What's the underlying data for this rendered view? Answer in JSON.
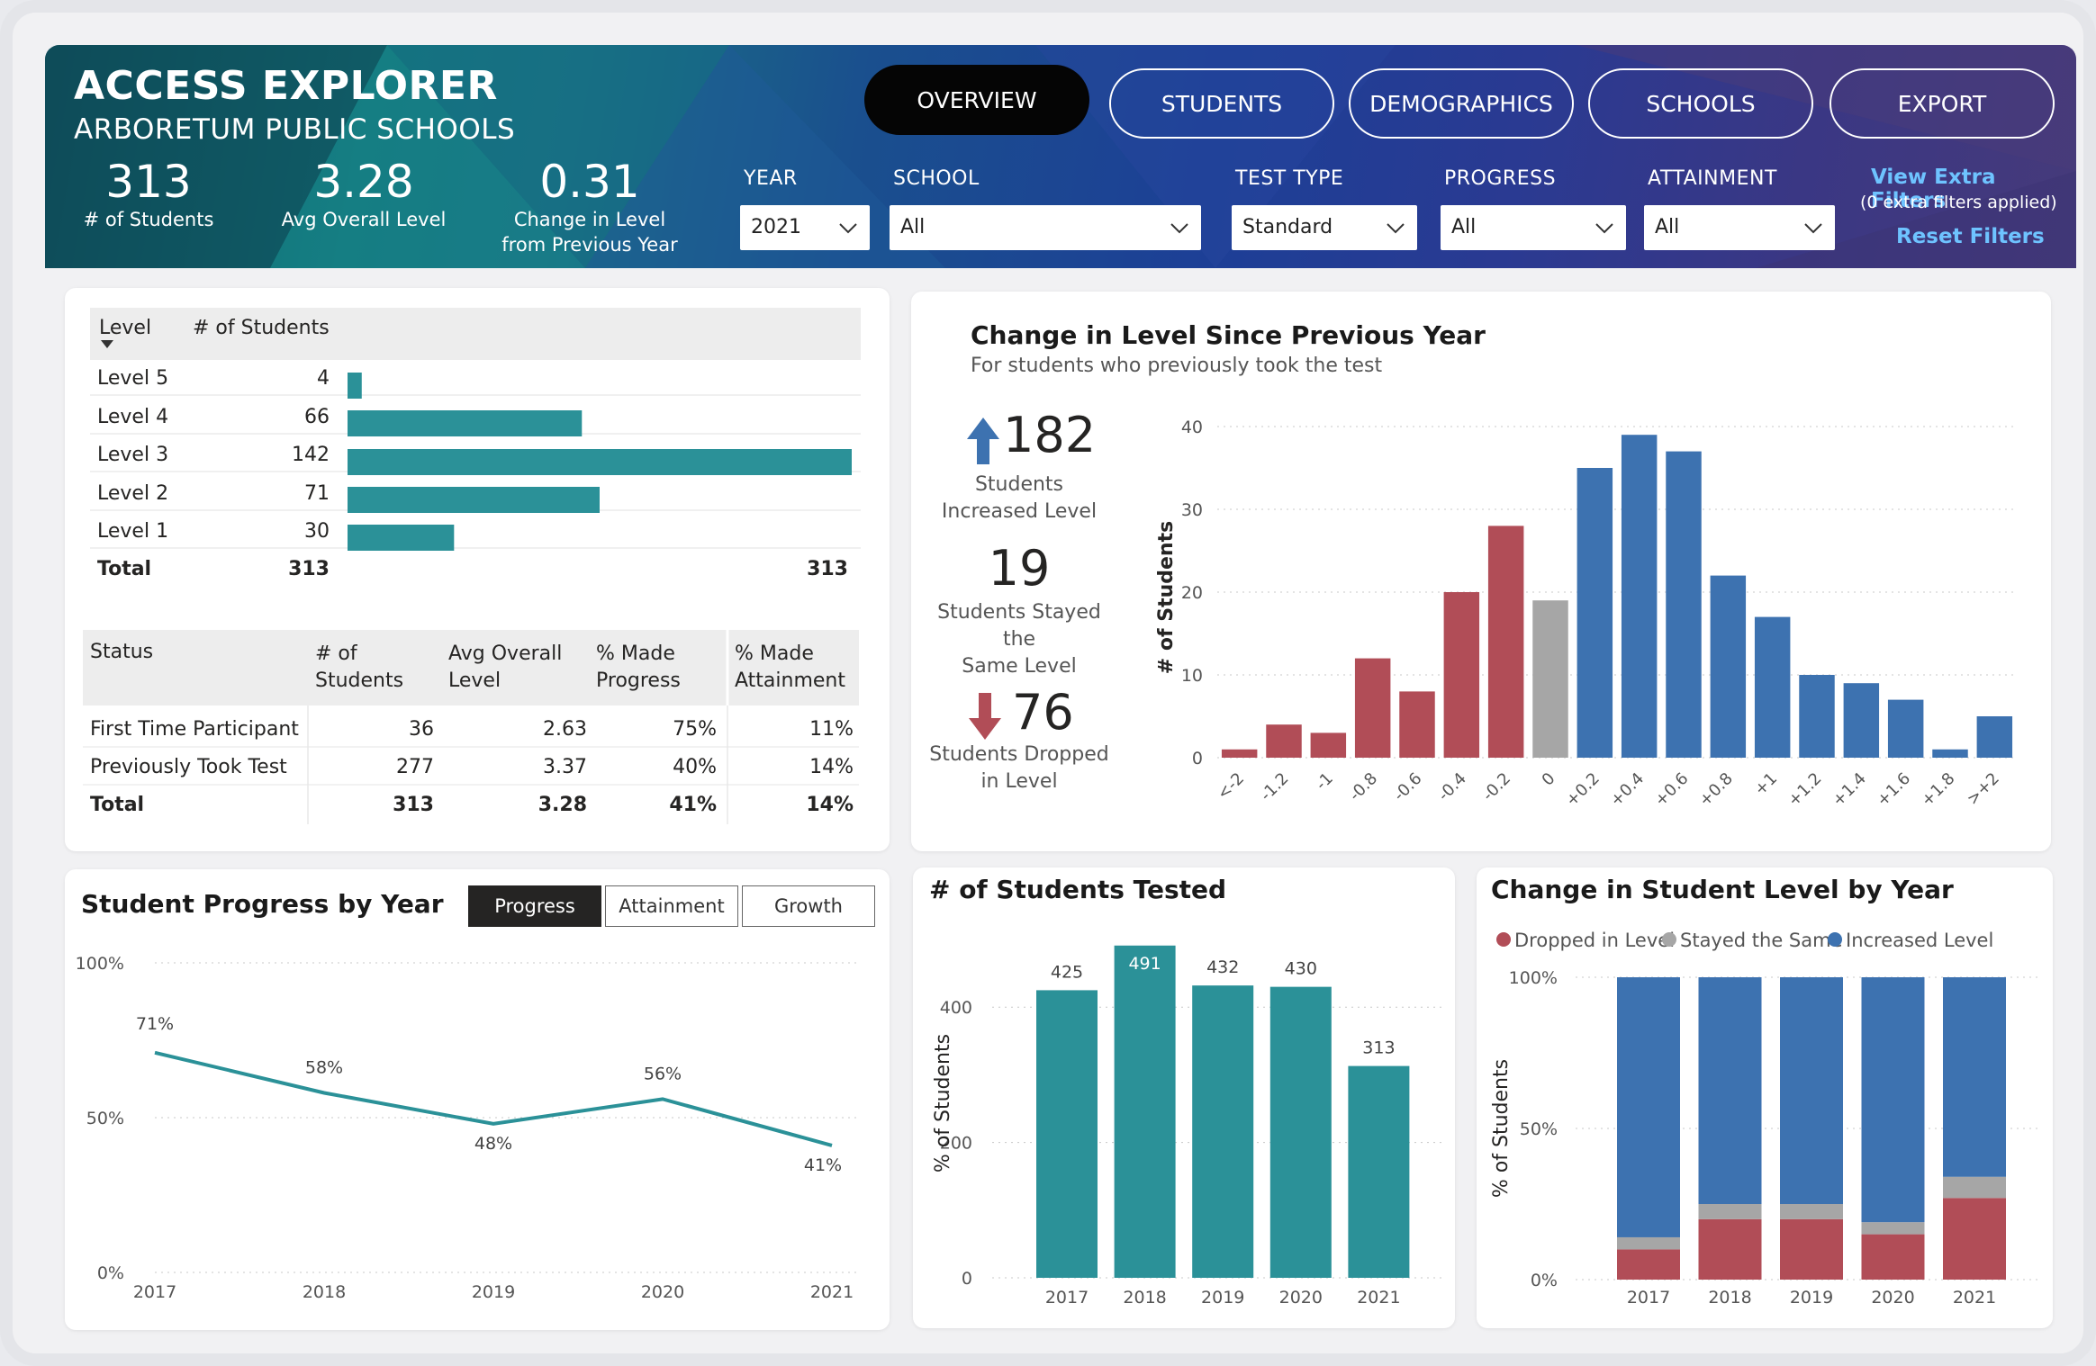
{
  "app": {
    "title": "ACCESS EXPLORER",
    "subtitle": "ARBORETUM PUBLIC SCHOOLS"
  },
  "kpis": [
    {
      "value": "313",
      "label1": "# of Students",
      "label2": ""
    },
    {
      "value": "3.28",
      "label1": "Avg Overall Level",
      "label2": ""
    },
    {
      "value": "0.31",
      "label1": "Change in Level",
      "label2": "from Previous Year"
    }
  ],
  "nav": {
    "overview": "OVERVIEW",
    "students": "STUDENTS",
    "demographics": "DEMOGRAPHICS",
    "schools": "SCHOOLS",
    "export": "EXPORT"
  },
  "filters": {
    "year": {
      "label": "YEAR",
      "value": "2021"
    },
    "school": {
      "label": "SCHOOL",
      "value": "All"
    },
    "test_type": {
      "label": "TEST TYPE",
      "value": "Standard"
    },
    "progress": {
      "label": "PROGRESS",
      "value": "All"
    },
    "attainment": {
      "label": "ATTAINMENT",
      "value": "All"
    },
    "extra_link": "View Extra Filters",
    "extra_note": "(0 extra filters applied)",
    "reset": "Reset Filters"
  },
  "level_table": {
    "headers": [
      "Level",
      "# of Students"
    ],
    "rows": [
      {
        "label": "Level 5",
        "count": 4
      },
      {
        "label": "Level 4",
        "count": 66
      },
      {
        "label": "Level 3",
        "count": 142
      },
      {
        "label": "Level 2",
        "count": 71
      },
      {
        "label": "Level 1",
        "count": 30
      }
    ],
    "total_label": "Total",
    "total_count": "313",
    "total_bar": "313"
  },
  "status_table": {
    "headers": [
      "Status",
      "# of Students",
      "Avg Overall Level",
      "% Made Progress",
      "% Made Attainment"
    ],
    "rows": [
      [
        "First Time Participant",
        "36",
        "2.63",
        "75%",
        "11%"
      ],
      [
        "Previously Took Test",
        "277",
        "3.37",
        "40%",
        "14%"
      ],
      [
        "Total",
        "313",
        "3.28",
        "41%",
        "14%"
      ]
    ]
  },
  "change_card": {
    "title": "Change in Level Since Previous Year",
    "subtitle": "For students who previously took the test",
    "increased": {
      "value": "182",
      "label1": "Students",
      "label2": "Increased Level"
    },
    "stayed": {
      "value": "19",
      "label1": "Students Stayed the",
      "label2": "Same Level"
    },
    "dropped": {
      "value": "76",
      "label1": "Students Dropped",
      "label2": "in Level"
    },
    "colors": {
      "increase": "#3d72b0",
      "decrease": "#b14d57",
      "same": "#a6a6a6"
    }
  },
  "progress_card": {
    "title": "Student Progress by Year",
    "toggles": [
      "Progress",
      "Attainment",
      "Growth"
    ]
  },
  "tested_card": {
    "title": "# of Students Tested"
  },
  "change_year_card": {
    "title": "Change in Student Level by Year",
    "legend": [
      "Dropped in Level",
      "Stayed the Same",
      "Increased Level"
    ]
  },
  "chart_data": [
    {
      "id": "level_distribution",
      "type": "bar",
      "categories": [
        "Level 5",
        "Level 4",
        "Level 3",
        "Level 2",
        "Level 1"
      ],
      "values": [
        4,
        66,
        142,
        71,
        30
      ],
      "color": "#2b9198"
    },
    {
      "id": "change_histogram",
      "type": "bar",
      "title": "Change in Level Since Previous Year",
      "categories": [
        "<-2",
        "-1.2",
        "-1",
        "-0.8",
        "-0.6",
        "-0.4",
        "-0.2",
        "0",
        "+0.2",
        "+0.4",
        "+0.6",
        "+0.8",
        "+1",
        "+1.2",
        "+1.4",
        "+1.6",
        "+1.8",
        ">+2"
      ],
      "values": [
        1,
        4,
        3,
        12,
        8,
        20,
        28,
        19,
        35,
        39,
        37,
        22,
        17,
        10,
        9,
        7,
        1,
        5
      ],
      "groups": [
        "dec",
        "dec",
        "dec",
        "dec",
        "dec",
        "dec",
        "dec",
        "same",
        "inc",
        "inc",
        "inc",
        "inc",
        "inc",
        "inc",
        "inc",
        "inc",
        "inc",
        "inc"
      ],
      "ylabel": "# of Students",
      "ylim": [
        0,
        40
      ],
      "yticks": [
        0,
        10,
        20,
        30,
        40
      ]
    },
    {
      "id": "progress_by_year",
      "type": "line",
      "title": "Student Progress by Year",
      "x": [
        "2017",
        "2018",
        "2019",
        "2020",
        "2021"
      ],
      "values": [
        71,
        58,
        48,
        56,
        41
      ],
      "value_labels": [
        "71%",
        "58%",
        "48%",
        "56%",
        "41%"
      ],
      "ylim": [
        0,
        100
      ],
      "yticks": [
        "0%",
        "50%",
        "100%"
      ],
      "color": "#2b9198"
    },
    {
      "id": "students_tested",
      "type": "bar",
      "title": "# of Students Tested",
      "categories": [
        "2017",
        "2018",
        "2019",
        "2020",
        "2021"
      ],
      "values": [
        425,
        491,
        432,
        430,
        313
      ],
      "ylabel": "% of Students",
      "ylim": [
        0,
        500
      ],
      "yticks": [
        0,
        200,
        400
      ],
      "color": "#2b9198",
      "highlight_index": 1,
      "highlight_color": "#ffffff"
    },
    {
      "id": "change_by_year",
      "type": "bar",
      "stacked": true,
      "title": "Change in Student Level by Year",
      "categories": [
        "2017",
        "2018",
        "2019",
        "2020",
        "2021"
      ],
      "series": [
        {
          "name": "Dropped in Level",
          "values": [
            10,
            20,
            20,
            15,
            27
          ],
          "color": "#b14d57"
        },
        {
          "name": "Stayed the Same",
          "values": [
            4,
            5,
            5,
            4,
            7
          ],
          "color": "#a6a6a6"
        },
        {
          "name": "Increased Level",
          "values": [
            86,
            75,
            75,
            81,
            66
          ],
          "color": "#3d72b0"
        }
      ],
      "ylabel": "% of Students",
      "ylim": [
        0,
        100
      ],
      "yticks": [
        "0%",
        "50%",
        "100%"
      ]
    }
  ]
}
